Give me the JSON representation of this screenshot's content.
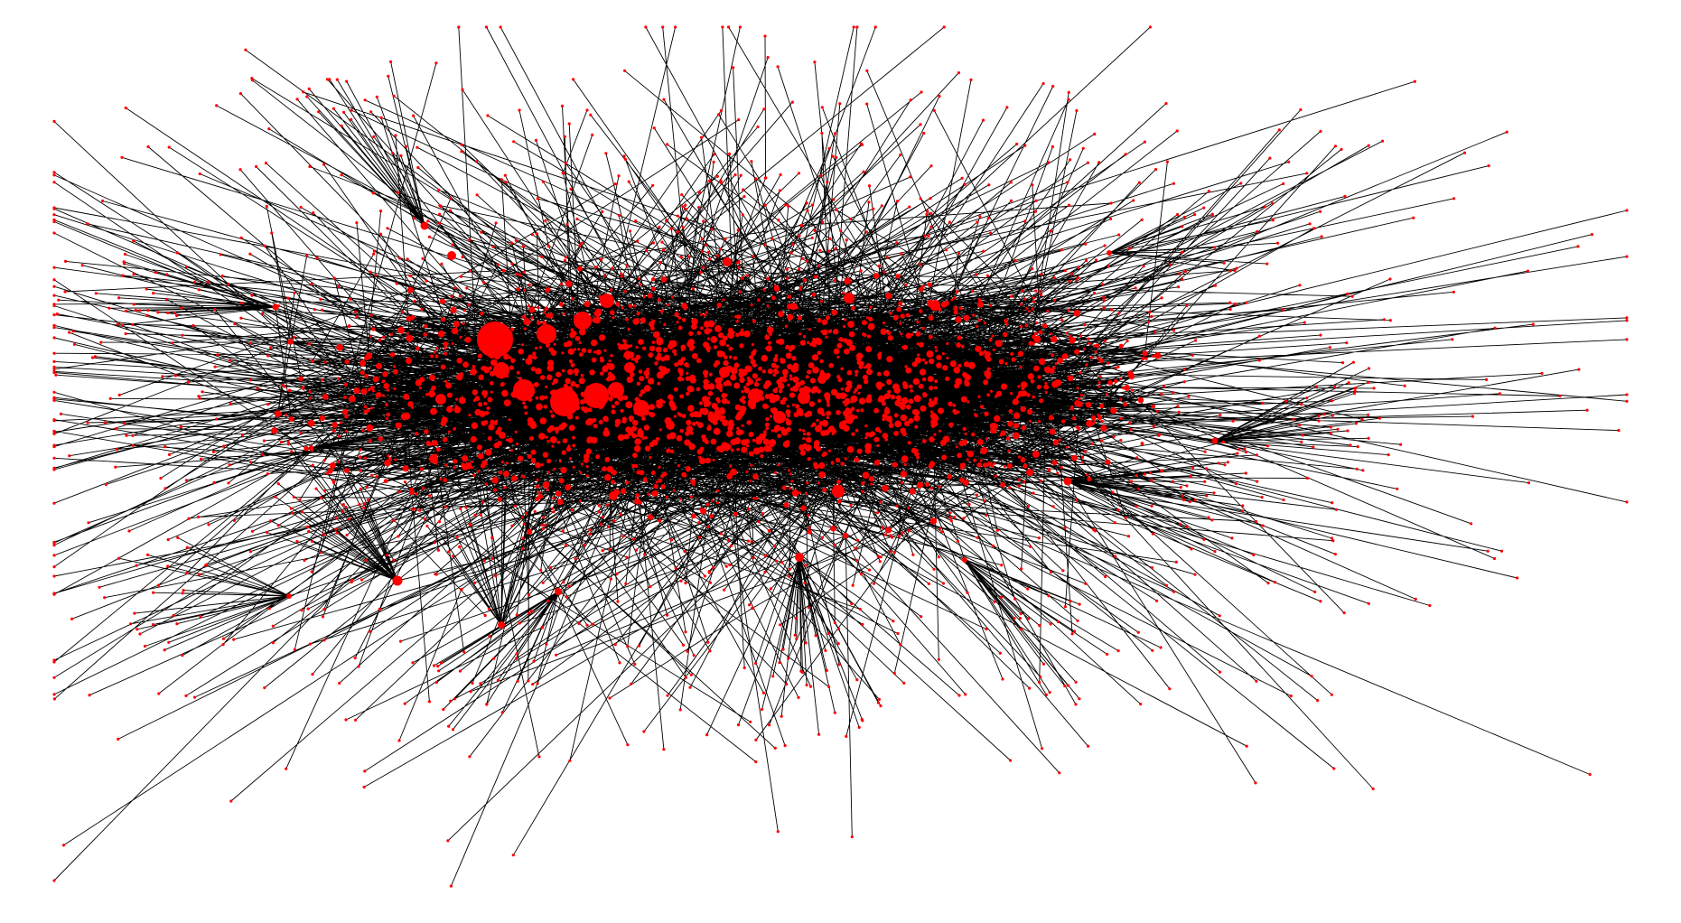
{
  "figure": {
    "type": "network-graph",
    "title": "",
    "layout": "force-directed",
    "edge_color": "#000000",
    "node_color": "#ff0000",
    "background": "#ffffff"
  }
}
